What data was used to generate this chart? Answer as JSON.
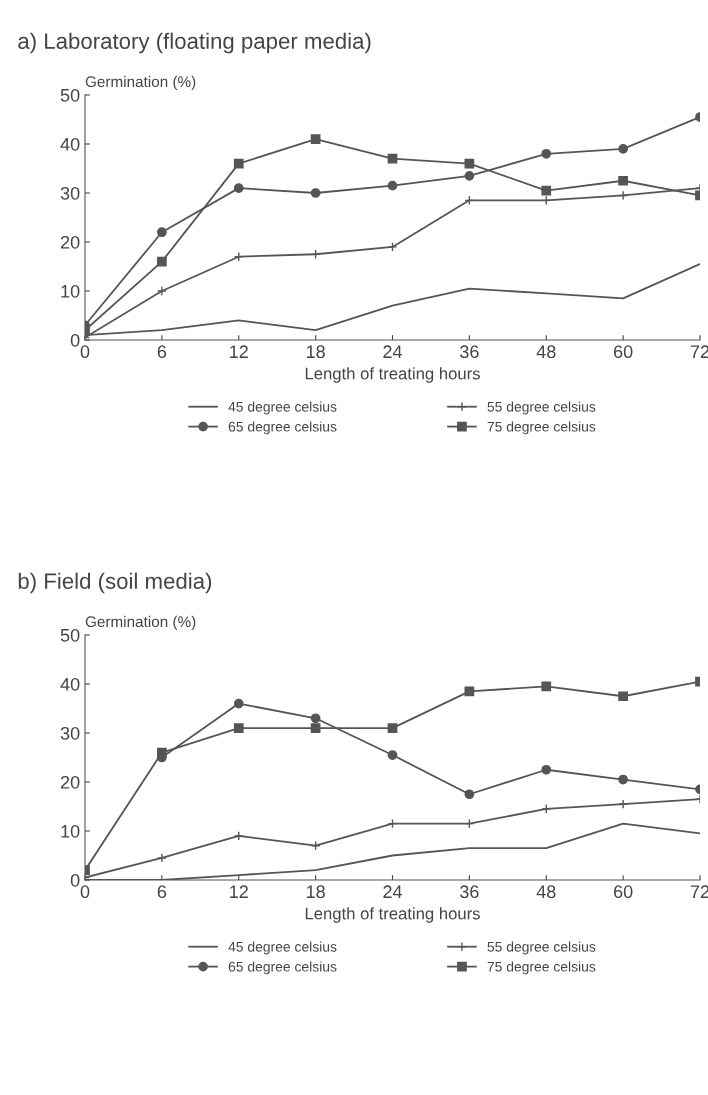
{
  "chart_data": [
    {
      "type": "line",
      "title": "a) Laboratory (floating paper media)",
      "ylabel": "Germination (%)",
      "xlabel": "Length of treating hours",
      "categories": [
        "0",
        "6",
        "12",
        "18",
        "24",
        "36",
        "48",
        "60",
        "72"
      ],
      "ylim": [
        0,
        50
      ],
      "yticks": [
        0,
        10,
        20,
        30,
        40,
        50
      ],
      "legend": "bottom",
      "grid": false,
      "series": [
        {
          "name": "45 degree celsius",
          "color": "#555555",
          "marker": "none",
          "values": [
            1,
            2,
            4,
            2,
            7,
            10.5,
            9.5,
            8.5,
            15.5
          ]
        },
        {
          "name": "55 degree celsius",
          "color": "#555555",
          "marker": "cross",
          "values": [
            0.5,
            10,
            17,
            17.5,
            19,
            28.5,
            28.5,
            29.5,
            31
          ]
        },
        {
          "name": "65 degree celsius",
          "color": "#555555",
          "marker": "circle",
          "values": [
            3,
            22,
            31,
            30,
            31.5,
            33.5,
            38,
            39,
            45.5
          ]
        },
        {
          "name": "75 degree celsius",
          "color": "#555555",
          "marker": "square",
          "values": [
            2,
            16,
            36,
            41,
            37,
            36,
            30.5,
            32.5,
            29.5
          ]
        }
      ]
    },
    {
      "type": "line",
      "title": "b) Field (soil media)",
      "ylabel": "Germination (%)",
      "xlabel": "Length of treating hours",
      "categories": [
        "0",
        "6",
        "12",
        "18",
        "24",
        "36",
        "48",
        "60",
        "72"
      ],
      "ylim": [
        0,
        50
      ],
      "yticks": [
        0,
        10,
        20,
        30,
        40,
        50
      ],
      "legend": "bottom",
      "grid": false,
      "series": [
        {
          "name": "45 degree celsius",
          "color": "#555555",
          "marker": "none",
          "values": [
            0,
            0,
            1,
            2,
            5,
            6.5,
            6.5,
            11.5,
            9.5
          ]
        },
        {
          "name": "55 degree celsius",
          "color": "#555555",
          "marker": "cross",
          "values": [
            0.5,
            4.5,
            9,
            7,
            11.5,
            11.5,
            14.5,
            15.5,
            16.5
          ]
        },
        {
          "name": "65 degree celsius",
          "color": "#555555",
          "marker": "circle",
          "values": [
            null,
            25,
            36,
            33,
            25.5,
            17.5,
            22.5,
            20.5,
            18.5
          ]
        },
        {
          "name": "75 degree celsius",
          "color": "#555555",
          "marker": "square",
          "values": [
            2,
            26,
            31,
            31,
            31,
            38.5,
            39.5,
            37.5,
            40.5
          ]
        }
      ]
    }
  ]
}
